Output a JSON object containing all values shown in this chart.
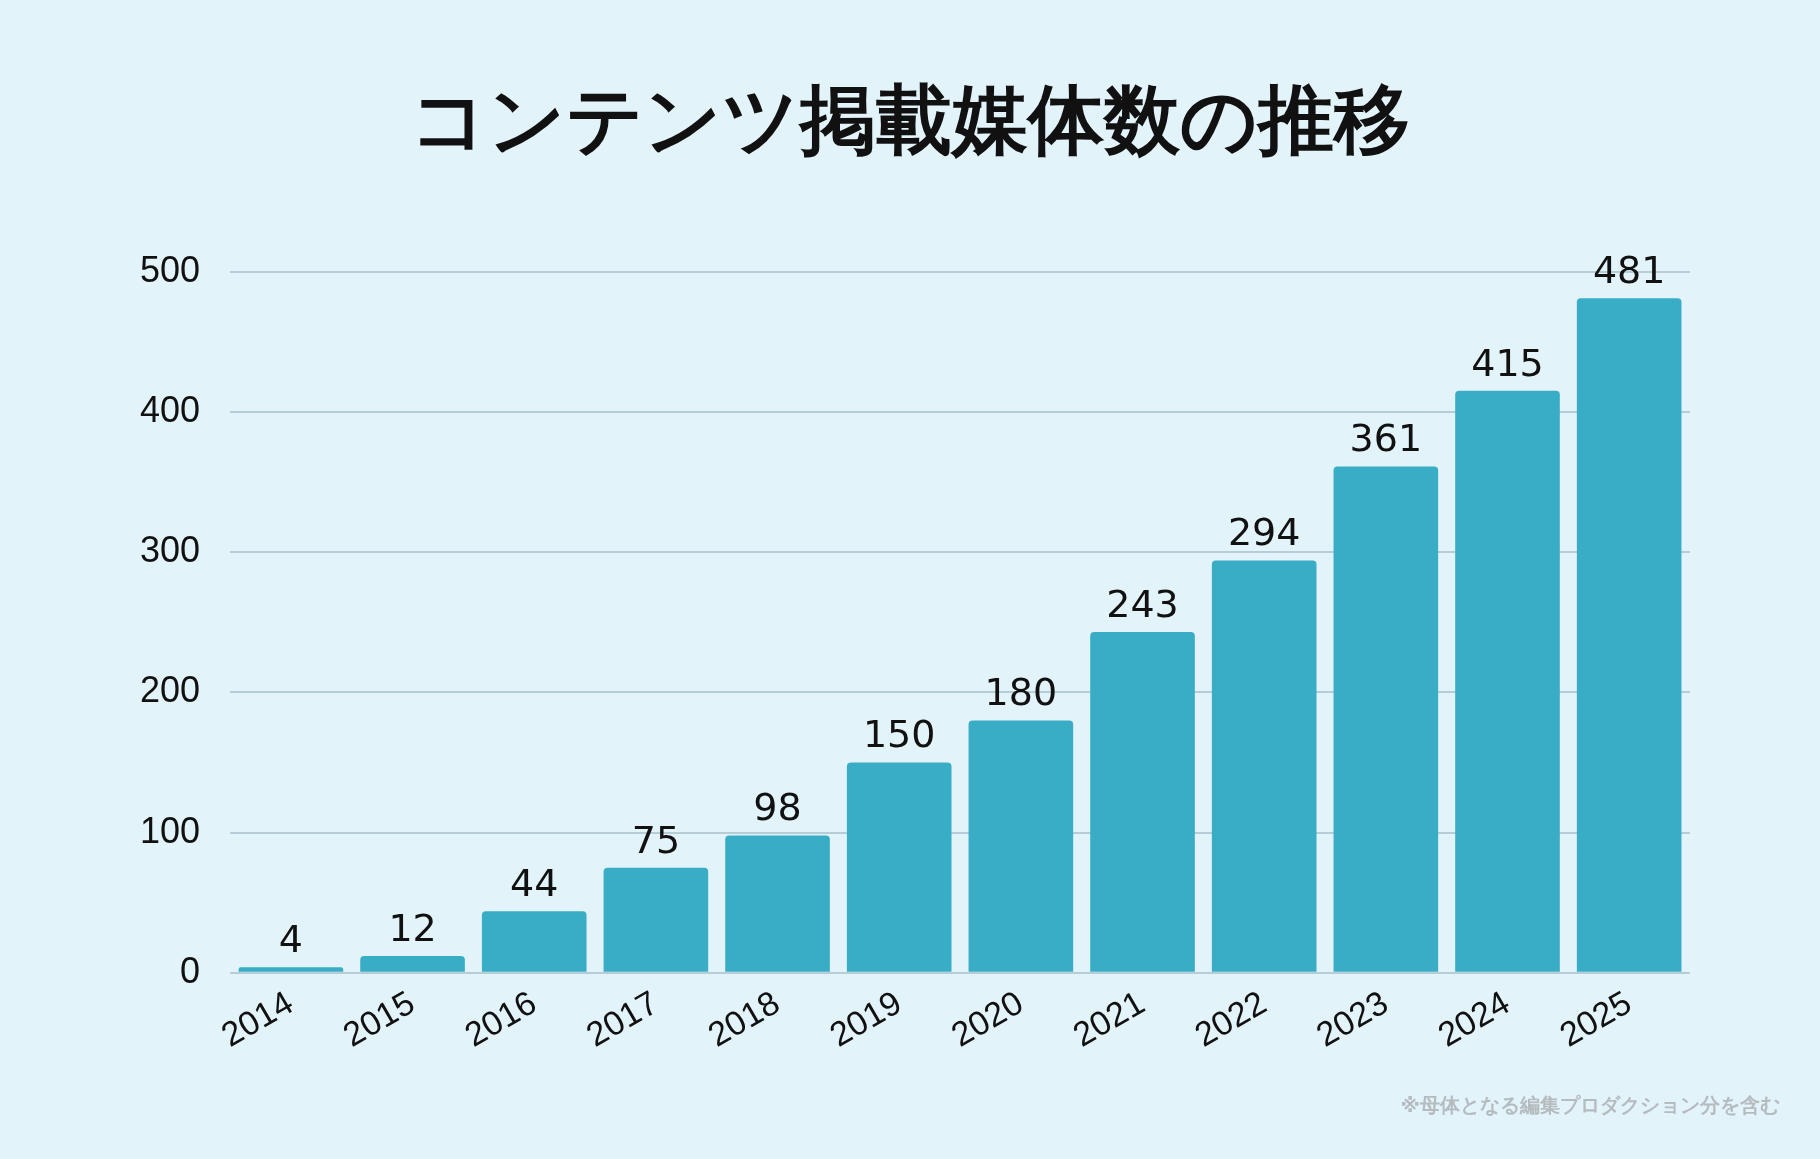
{
  "chart_data": {
    "type": "bar",
    "title": "コンテンツ掲載媒体数の推移",
    "categories": [
      "2014",
      "2015",
      "2016",
      "2017",
      "2018",
      "2019",
      "2020",
      "2021",
      "2022",
      "2023",
      "2024",
      "2025"
    ],
    "values": [
      4,
      12,
      44,
      75,
      98,
      150,
      180,
      243,
      294,
      361,
      415,
      481
    ],
    "color": "#3aadc6",
    "ylim": [
      0,
      500
    ],
    "yticks": [
      0,
      100,
      200,
      300,
      400,
      500
    ],
    "grid": "y",
    "legend": false,
    "data_labels": true,
    "annotations": [
      "※母体となる編集プロダクション分を含む"
    ]
  }
}
